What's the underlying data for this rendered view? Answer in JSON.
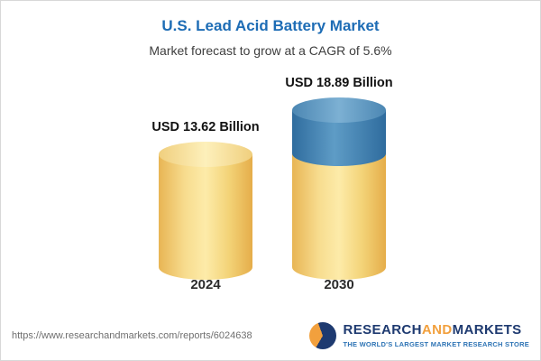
{
  "card": {
    "title": "U.S. Lead Acid Battery Market",
    "subtitle": "Market forecast to grow at a CAGR of 5.6%"
  },
  "chart_data": {
    "type": "bar",
    "title": "U.S. Lead Acid Battery Market",
    "subtitle": "Market forecast to grow at a CAGR of 5.6%",
    "unit": "USD Billion",
    "cagr": "5.6%",
    "categories": [
      "2024",
      "2030"
    ],
    "values": [
      13.62,
      18.89
    ],
    "bars": [
      {
        "category": "2024",
        "value": 13.62,
        "label": "USD 13.62 Billion",
        "segments": [
          {
            "name": "base",
            "color": "#f3d377",
            "value": 13.62
          }
        ]
      },
      {
        "category": "2030",
        "value": 18.89,
        "label": "USD 18.89 Billion",
        "segments": [
          {
            "name": "base",
            "color": "#f3d377",
            "value": 13.62
          },
          {
            "name": "growth",
            "color": "#4a86b2",
            "value": 5.27
          }
        ]
      }
    ],
    "legend": [],
    "grid": false
  },
  "colors": {
    "title_blue": "#1d6cb5",
    "cylinder_yellow": "#f3d377",
    "cylinder_blue": "#4a86b2",
    "logo_navy": "#1e3a70",
    "logo_orange": "#f2a03d"
  },
  "footer": {
    "url": "https://www.researchandmarkets.com/reports/6024638",
    "logo": {
      "research": "RESEARCH",
      "and": "AND",
      "markets": "MARKETS",
      "tagline": "THE WORLD'S LARGEST MARKET RESEARCH STORE"
    }
  }
}
